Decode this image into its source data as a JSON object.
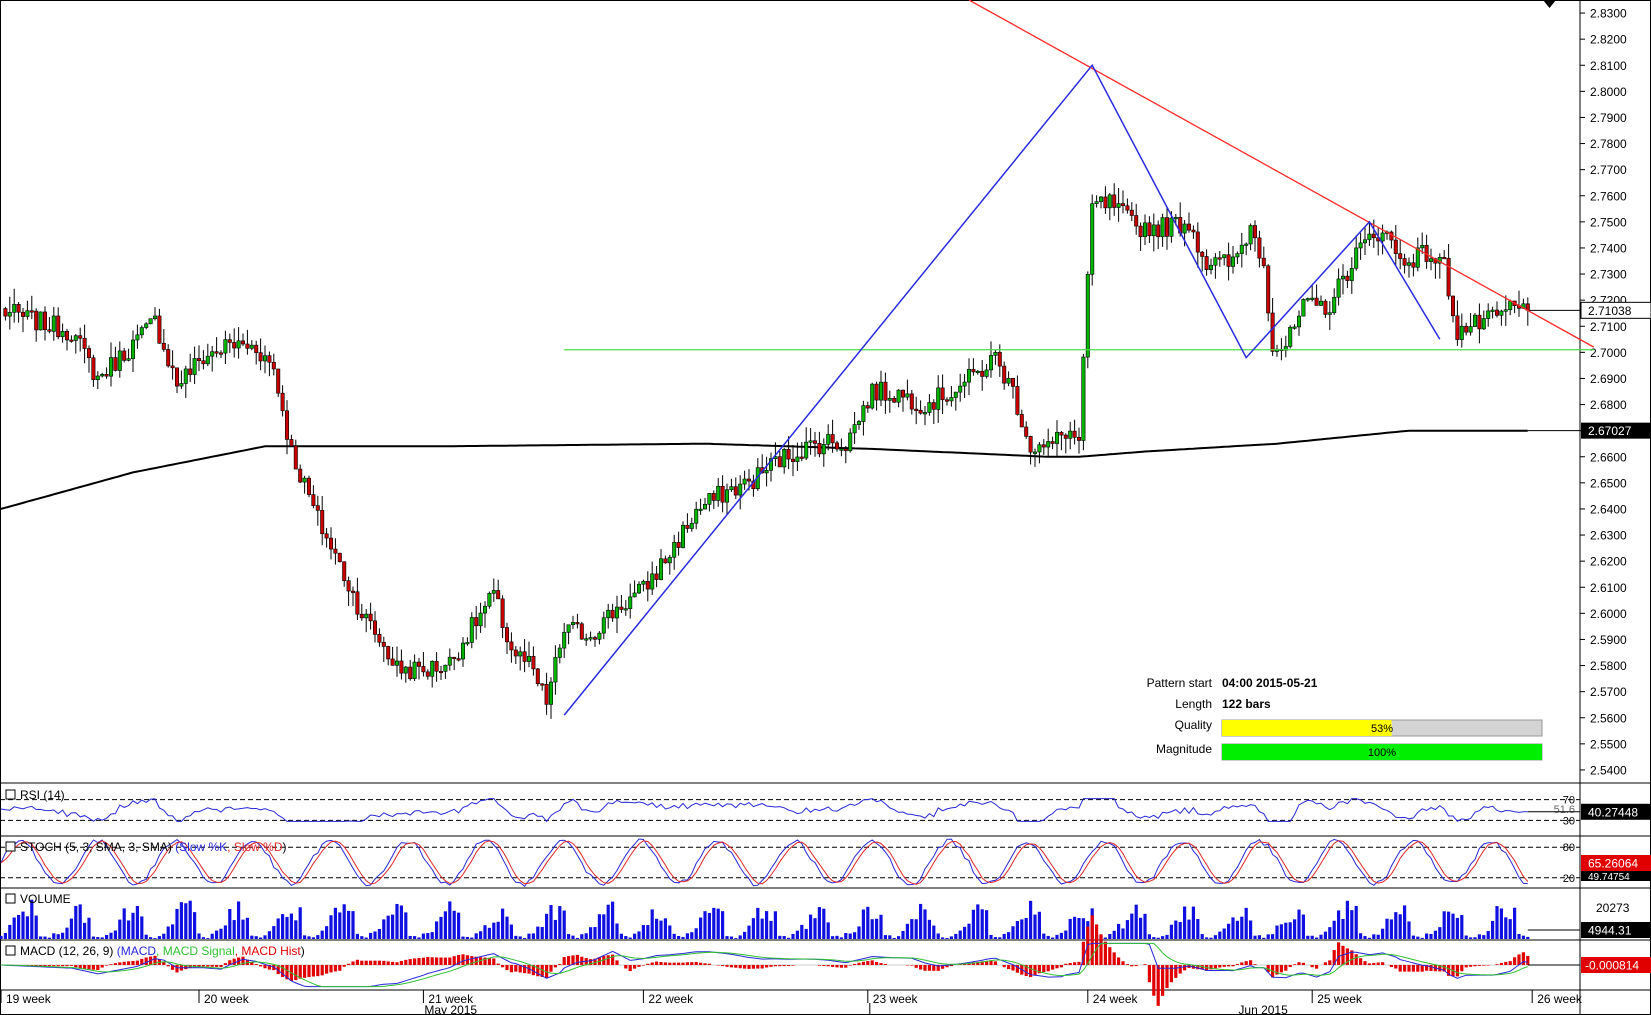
{
  "chart_data": {
    "type": "candlestick",
    "price_axis": {
      "ylim": [
        2.535,
        2.835
      ],
      "ticks": [
        "2.8300",
        "2.8200",
        "2.8100",
        "2.8000",
        "2.7900",
        "2.7800",
        "2.7700",
        "2.7600",
        "2.7500",
        "2.7400",
        "2.7300",
        "2.7200",
        "2.7100",
        "2.7000",
        "2.6900",
        "2.6800",
        "2.6700",
        "2.6600",
        "2.6500",
        "2.6400",
        "2.6300",
        "2.6200",
        "2.6100",
        "2.6000",
        "2.5900",
        "2.5800",
        "2.5700",
        "2.5600",
        "2.5500",
        "2.5400"
      ],
      "last_price_label": "2.71038",
      "ma_label": "2.67027"
    },
    "bars_shown": 240,
    "price_path": [
      [
        0,
        2.716
      ],
      [
        16,
        2.708
      ],
      [
        22,
        2.69
      ],
      [
        30,
        2.703
      ],
      [
        35,
        2.712
      ],
      [
        40,
        2.688
      ],
      [
        46,
        2.698
      ],
      [
        52,
        2.703
      ],
      [
        58,
        2.702
      ],
      [
        62,
        2.694
      ],
      [
        66,
        2.662
      ],
      [
        72,
        2.636
      ],
      [
        76,
        2.622
      ],
      [
        82,
        2.6
      ],
      [
        86,
        2.59
      ],
      [
        90,
        2.579
      ],
      [
        96,
        2.578
      ],
      [
        102,
        2.581
      ],
      [
        106,
        2.592
      ],
      [
        112,
        2.607
      ],
      [
        116,
        2.586
      ],
      [
        120,
        2.58
      ],
      [
        124,
        2.566
      ],
      [
        128,
        2.594
      ],
      [
        134,
        2.592
      ],
      [
        140,
        2.602
      ],
      [
        146,
        2.609
      ],
      [
        152,
        2.623
      ],
      [
        158,
        2.639
      ],
      [
        164,
        2.646
      ],
      [
        170,
        2.65
      ],
      [
        176,
        2.658
      ],
      [
        182,
        2.663
      ],
      [
        188,
        2.666
      ],
      [
        192,
        2.665
      ],
      [
        198,
        2.685
      ],
      [
        204,
        2.684
      ],
      [
        210,
        2.68
      ],
      [
        216,
        2.685
      ],
      [
        222,
        2.692
      ],
      [
        226,
        2.698
      ],
      [
        230,
        2.685
      ],
      [
        234,
        2.664
      ],
      [
        238,
        2.663
      ],
      [
        242,
        2.67
      ],
      [
        245,
        2.666
      ],
      [
        248,
        2.756
      ],
      [
        252,
        2.757
      ],
      [
        258,
        2.748
      ],
      [
        264,
        2.748
      ],
      [
        270,
        2.75
      ],
      [
        274,
        2.734
      ],
      [
        280,
        2.734
      ],
      [
        284,
        2.748
      ],
      [
        287,
        2.735
      ],
      [
        289,
        2.703
      ],
      [
        292,
        2.702
      ],
      [
        296,
        2.717
      ],
      [
        302,
        2.718
      ],
      [
        308,
        2.738
      ],
      [
        314,
        2.748
      ],
      [
        318,
        2.735
      ],
      [
        324,
        2.738
      ],
      [
        328,
        2.733
      ],
      [
        331,
        2.708
      ],
      [
        336,
        2.711
      ],
      [
        340,
        2.713
      ],
      [
        343,
        2.717
      ],
      [
        347,
        2.716
      ]
    ],
    "moving_average": [
      [
        0,
        2.64
      ],
      [
        30,
        2.654
      ],
      [
        60,
        2.664
      ],
      [
        100,
        2.664
      ],
      [
        160,
        2.665
      ],
      [
        198,
        2.663
      ],
      [
        238,
        2.66
      ],
      [
        245,
        2.66
      ],
      [
        260,
        2.662
      ],
      [
        290,
        2.665
      ],
      [
        320,
        2.67
      ],
      [
        347,
        2.67
      ]
    ],
    "pattern": {
      "zigzag": [
        [
          128,
          2.561
        ],
        [
          248,
          2.81
        ],
        [
          283,
          2.698
        ],
        [
          311,
          2.75
        ],
        [
          327,
          2.705
        ]
      ],
      "resistance_line": [
        [
          220,
          2.835
        ],
        [
          362,
          2.702
        ]
      ],
      "support_line": [
        [
          128,
          2.701
        ],
        [
          362,
          2.701
        ]
      ],
      "info": {
        "pattern_start_label": "Pattern start",
        "pattern_start_value": "04:00 2015-05-21",
        "length_label": "Length",
        "length_value": "122 bars",
        "quality_label": "Quality",
        "quality_percent": 53,
        "quality_text": "53%",
        "magnitude_label": "Magnitude",
        "magnitude_percent": 100,
        "magnitude_text": "100%"
      }
    },
    "indicators": {
      "rsi": {
        "title": "RSI (14)",
        "levels": [
          "70",
          "30"
        ],
        "value_label": "40.27448",
        "mid_label": "51.6"
      },
      "stoch": {
        "title": "STOCH (5, 3, SMA, 3, SMA)",
        "series": [
          "Slow %K",
          "Slow %D"
        ],
        "levels": [
          "80",
          "20"
        ],
        "value_label": "65.26064",
        "value_label_2": "49.74754"
      },
      "volume": {
        "title": "VOLUME",
        "axis_label": "20273",
        "value_label": "4944.31"
      },
      "macd": {
        "title": "MACD (12, 26, 9)",
        "series": [
          "MACD",
          "MACD Signal",
          "MACD Hist"
        ],
        "value_label": "-0.000814"
      }
    },
    "x_axis": {
      "week_labels": [
        {
          "label": "19 week",
          "bar": 0
        },
        {
          "label": "20 week",
          "bar": 45
        },
        {
          "label": "21 week",
          "bar": 96
        },
        {
          "label": "22 week",
          "bar": 146
        },
        {
          "label": "23 week",
          "bar": 197
        },
        {
          "label": "24 week",
          "bar": 247
        },
        {
          "label": "25 week",
          "bar": 298
        },
        {
          "label": "26 week",
          "bar": 348
        }
      ],
      "month_labels": [
        {
          "label": "May 2015",
          "bar": 96
        },
        {
          "label": "Jun 2015",
          "bar": 281
        }
      ]
    },
    "colors": {
      "up": "#00b400",
      "down": "#c80000",
      "ma": "#000000",
      "zigzag": "#2a2ae0",
      "resistance": "#ff2a2a",
      "support": "#4cdc4c",
      "rsi": "#2828d8",
      "stoch_k": "#2828d8",
      "stoch_d": "#e02828",
      "volume": "#1010e0",
      "macd": "#2828d8",
      "macd_signal": "#30c030",
      "macd_hist": "#e00000",
      "quality": "#ffff00",
      "magnitude": "#00ee00"
    }
  }
}
